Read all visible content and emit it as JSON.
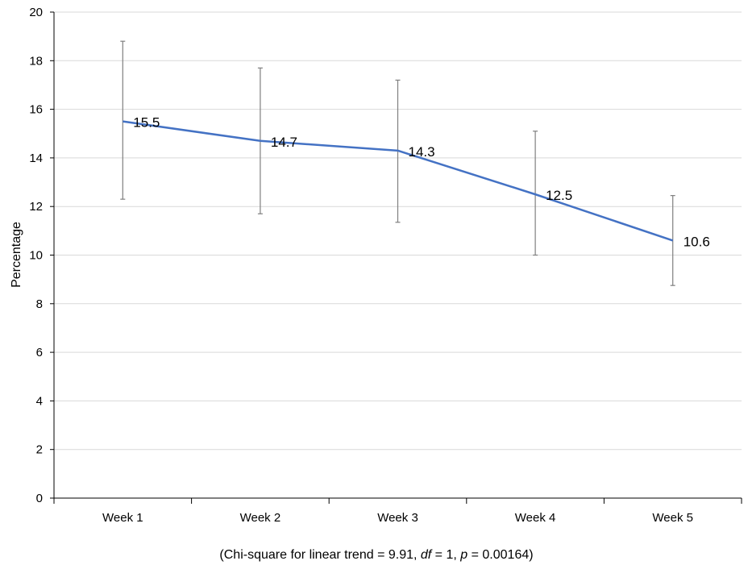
{
  "chart_data": {
    "type": "line",
    "title": "",
    "xlabel": "",
    "ylabel": "Percentage",
    "categories": [
      "Week 1",
      "Week 2",
      "Week 3",
      "Week 4",
      "Week 5"
    ],
    "series": [
      {
        "values": [
          15.5,
          14.7,
          14.3,
          12.5,
          10.6
        ],
        "data_labels": [
          "15.5",
          "14.7",
          "14.3",
          "12.5",
          "10.6"
        ],
        "error_low": [
          12.3,
          11.7,
          11.35,
          10.0,
          8.75
        ],
        "error_high": [
          18.8,
          17.7,
          17.2,
          15.1,
          12.45
        ],
        "color": "#4472C4"
      }
    ],
    "ylim": [
      0,
      20
    ],
    "yticks": [
      0,
      2,
      4,
      6,
      8,
      10,
      12,
      14,
      16,
      18,
      20
    ],
    "grid": true,
    "legend": "none"
  },
  "footnote": {
    "prefix": "(Chi-square for linear trend = 9.91, ",
    "df_label": "df",
    "df_value": " = 1, ",
    "p_label": "p",
    "p_value": " = 0.00164)"
  },
  "colors": {
    "line": "#4472C4",
    "grid": "#d9d9d9",
    "axis": "#000000",
    "error_bar": "#7f7f7f"
  }
}
